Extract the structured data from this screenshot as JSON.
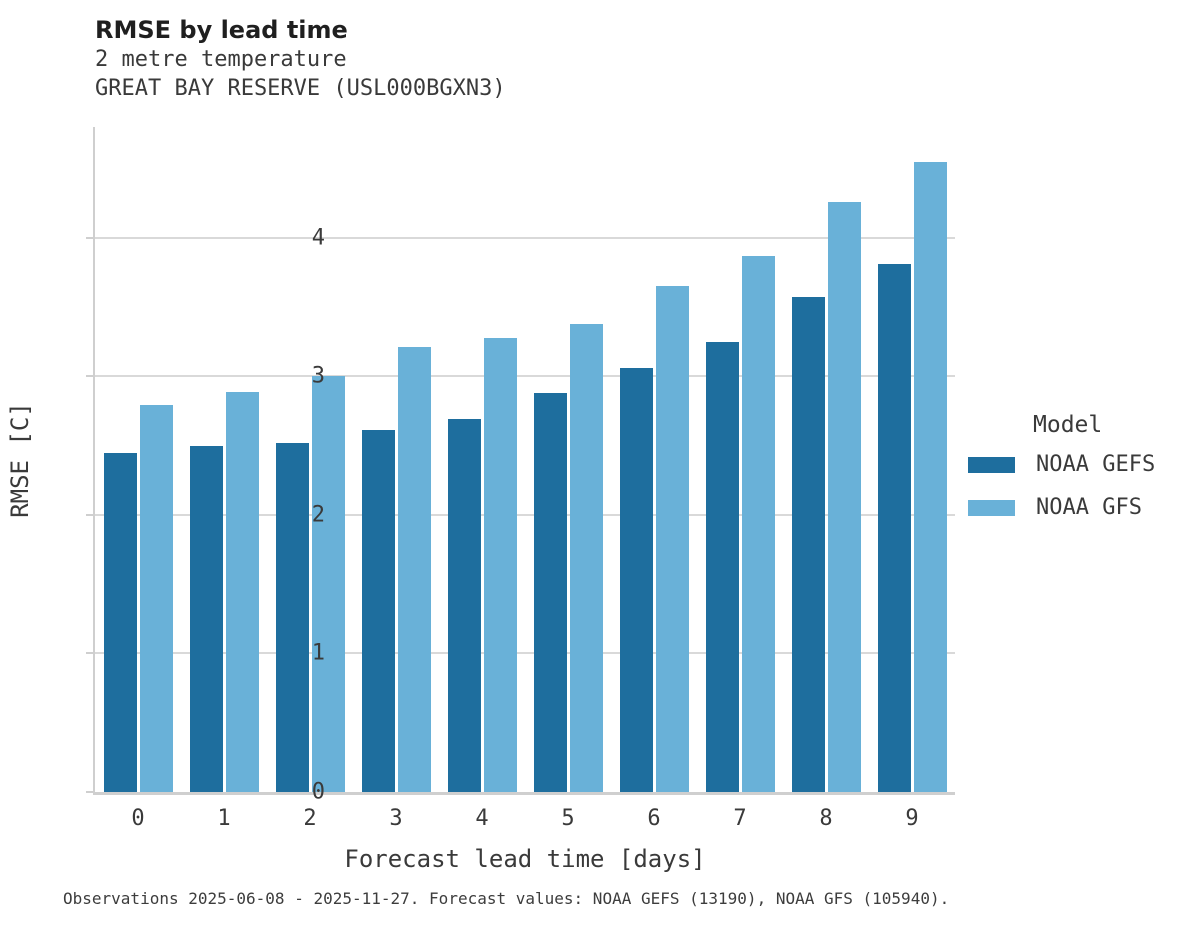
{
  "figure": {
    "title": "RMSE by lead time",
    "subtitle_line1": "2 metre temperature",
    "subtitle_line2": "GREAT BAY RESERVE (USL000BGXN3)",
    "caption": "Observations 2025-06-08 - 2025-11-27. Forecast values: NOAA GEFS (13190), NOAA GFS (105940)."
  },
  "chart_data": {
    "type": "bar",
    "title": "RMSE by lead time",
    "subtitle": [
      "2 metre temperature",
      "GREAT BAY RESERVE (USL000BGXN3)"
    ],
    "categories": [
      "0",
      "1",
      "2",
      "3",
      "4",
      "5",
      "6",
      "7",
      "8",
      "9"
    ],
    "series": [
      {
        "name": "NOAA GEFS",
        "color": "#1e6e9e",
        "values": [
          2.45,
          2.5,
          2.52,
          2.61,
          2.69,
          2.88,
          3.06,
          3.25,
          3.57,
          3.81
        ]
      },
      {
        "name": "NOAA GFS",
        "color": "#69b1d8",
        "values": [
          2.79,
          2.89,
          3.0,
          3.21,
          3.28,
          3.38,
          3.65,
          3.87,
          4.26,
          4.55
        ]
      }
    ],
    "xlabel": "Forecast lead time [days]",
    "ylabel": "RMSE [C]",
    "ylim": [
      0,
      4.8
    ],
    "yticks": [
      0,
      1,
      2,
      3,
      4
    ],
    "grid": "horizontal",
    "legend_title": "Model",
    "legend_position": "right",
    "caption": "Observations 2025-06-08 - 2025-11-27. Forecast values: NOAA GEFS (13190), NOAA GFS (105940)."
  },
  "colors": {
    "grid": "#d9d9d9",
    "axis": "#cfcfcf",
    "text": "#3a3a3a",
    "title_text": "#1f1f1f"
  }
}
